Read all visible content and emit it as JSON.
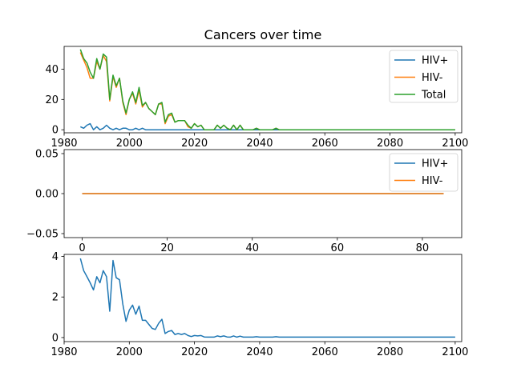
{
  "chart_data": [
    {
      "type": "line",
      "title": "Cancers over time",
      "xlabel": "",
      "ylabel": "",
      "xlim": [
        1980,
        2102
      ],
      "ylim": [
        -2,
        55
      ],
      "xticks": [
        1980,
        2000,
        2020,
        2040,
        2060,
        2080,
        2100
      ],
      "yticks": [
        0,
        20,
        40
      ],
      "legend": "top-right",
      "grid": false,
      "series": [
        {
          "name": "HIV+",
          "color": "#1f77b4",
          "x": [
            1985,
            1986,
            1987,
            1988,
            1989,
            1990,
            1991,
            1992,
            1993,
            1994,
            1995,
            1996,
            1997,
            1998,
            1999,
            2000,
            2001,
            2002,
            2003,
            2004,
            2005,
            2006,
            2007,
            2008,
            2009,
            2010,
            2011,
            2012,
            2013,
            2014,
            2015,
            2016,
            2017,
            2018,
            2019,
            2020,
            2021,
            2022,
            2023,
            2024,
            2025,
            2100
          ],
          "y": [
            2,
            1,
            3,
            4,
            0,
            2,
            0,
            1,
            3,
            1,
            0,
            1,
            0,
            1,
            1,
            0,
            0,
            1,
            0,
            1,
            0,
            0,
            0,
            0,
            0,
            0,
            0,
            0,
            0,
            0,
            0,
            0,
            0,
            0,
            0,
            0,
            0,
            0,
            0,
            0,
            0,
            0
          ]
        },
        {
          "name": "HIV-",
          "color": "#ff7f0e",
          "x": [
            1985,
            1986,
            1987,
            1988,
            1989,
            1990,
            1991,
            1992,
            1993,
            1994,
            1995,
            1996,
            1997,
            1998,
            1999,
            2000,
            2001,
            2002,
            2003,
            2004,
            2005,
            2006,
            2007,
            2008,
            2009,
            2010,
            2011,
            2012,
            2013,
            2014,
            2015,
            2016,
            2017,
            2018,
            2019,
            2020,
            2021,
            2022,
            2023,
            2024,
            2025,
            2026,
            2027,
            2028,
            2029,
            2030,
            2031,
            2032,
            2033,
            2034,
            2035,
            2036,
            2037,
            2038,
            2039,
            2040,
            2041,
            2042,
            2043,
            2044,
            2045,
            2046,
            2100
          ],
          "y": [
            51,
            46,
            41,
            34,
            34,
            45,
            40,
            49,
            45,
            19,
            35,
            28,
            34,
            18,
            10,
            20,
            24,
            17,
            26,
            15,
            18,
            14,
            12,
            10,
            17,
            17,
            4,
            9,
            10,
            5,
            6,
            6,
            6,
            2,
            1,
            4,
            2,
            3,
            0,
            0,
            0,
            0,
            3,
            1,
            3,
            1,
            0,
            3,
            0,
            3,
            0,
            0,
            0,
            0,
            1,
            0,
            0,
            0,
            0,
            0,
            1,
            0,
            0
          ]
        },
        {
          "name": "Total",
          "color": "#2ca02c",
          "x": [
            1985,
            1986,
            1987,
            1988,
            1989,
            1990,
            1991,
            1992,
            1993,
            1994,
            1995,
            1996,
            1997,
            1998,
            1999,
            2000,
            2001,
            2002,
            2003,
            2004,
            2005,
            2006,
            2007,
            2008,
            2009,
            2010,
            2011,
            2012,
            2013,
            2014,
            2015,
            2016,
            2017,
            2018,
            2019,
            2020,
            2021,
            2022,
            2023,
            2024,
            2025,
            2026,
            2027,
            2028,
            2029,
            2030,
            2031,
            2032,
            2033,
            2034,
            2035,
            2036,
            2037,
            2038,
            2039,
            2040,
            2041,
            2042,
            2043,
            2044,
            2045,
            2046,
            2100
          ],
          "y": [
            53,
            47,
            44,
            38,
            34,
            47,
            40,
            50,
            48,
            20,
            36,
            29,
            34,
            19,
            11,
            20,
            25,
            18,
            28,
            16,
            18,
            14,
            12,
            10,
            17,
            18,
            5,
            10,
            11,
            5,
            6,
            6,
            6,
            3,
            1,
            4,
            2,
            3,
            0,
            0,
            0,
            0,
            3,
            1,
            3,
            1,
            0,
            3,
            0,
            3,
            0,
            0,
            0,
            0,
            1,
            0,
            0,
            0,
            0,
            0,
            1,
            0,
            0
          ]
        }
      ]
    },
    {
      "type": "line",
      "title": "",
      "xlabel": "",
      "ylabel": "",
      "xlim": [
        -4.25,
        89.25
      ],
      "ylim": [
        -0.055,
        0.055
      ],
      "xticks": [
        0,
        20,
        40,
        60,
        80
      ],
      "yticks": [
        -0.05,
        0.0,
        0.05
      ],
      "ytick_labels": [
        "−0.05",
        "0.00",
        "0.05"
      ],
      "legend": "top-right",
      "grid": false,
      "series": [
        {
          "name": "HIV+",
          "color": "#1f77b4",
          "x": [
            0,
            85
          ],
          "y": [
            0,
            0
          ]
        },
        {
          "name": "HIV-",
          "color": "#ff7f0e",
          "x": [
            0,
            85
          ],
          "y": [
            0,
            0
          ]
        }
      ]
    },
    {
      "type": "line",
      "title": "",
      "xlabel": "",
      "ylabel": "",
      "xlim": [
        1980,
        2102
      ],
      "ylim": [
        -0.2,
        4.1
      ],
      "xticks": [
        1980,
        2000,
        2020,
        2040,
        2060,
        2080,
        2100
      ],
      "yticks": [
        0,
        2,
        4
      ],
      "grid": false,
      "series": [
        {
          "color": "#1f77b4",
          "x": [
            1985,
            1986,
            1987,
            1988,
            1989,
            1990,
            1991,
            1992,
            1993,
            1994,
            1995,
            1996,
            1997,
            1998,
            1999,
            2000,
            2001,
            2002,
            2003,
            2004,
            2005,
            2006,
            2007,
            2008,
            2009,
            2010,
            2011,
            2012,
            2013,
            2014,
            2015,
            2016,
            2017,
            2018,
            2019,
            2020,
            2021,
            2022,
            2023,
            2024,
            2025,
            2026,
            2027,
            2028,
            2029,
            2030,
            2031,
            2032,
            2033,
            2034,
            2035,
            2036,
            2037,
            2038,
            2039,
            2040,
            2041,
            2042,
            2043,
            2044,
            2045,
            2046,
            2047,
            2100
          ],
          "y": [
            3.9,
            3.3,
            3.0,
            2.7,
            2.35,
            3.0,
            2.7,
            3.3,
            3.0,
            1.3,
            3.8,
            2.95,
            2.85,
            1.65,
            0.8,
            1.35,
            1.6,
            1.15,
            1.55,
            0.85,
            0.85,
            0.65,
            0.45,
            0.4,
            0.7,
            0.9,
            0.2,
            0.3,
            0.35,
            0.15,
            0.2,
            0.15,
            0.2,
            0.1,
            0.05,
            0.1,
            0.08,
            0.1,
            0.03,
            0.02,
            0.02,
            0.02,
            0.08,
            0.04,
            0.08,
            0.03,
            0.02,
            0.08,
            0.02,
            0.07,
            0.02,
            0.02,
            0.02,
            0.02,
            0.04,
            0.02,
            0.02,
            0.02,
            0.02,
            0.02,
            0.04,
            0.02,
            0.02,
            0.02
          ]
        }
      ]
    }
  ]
}
